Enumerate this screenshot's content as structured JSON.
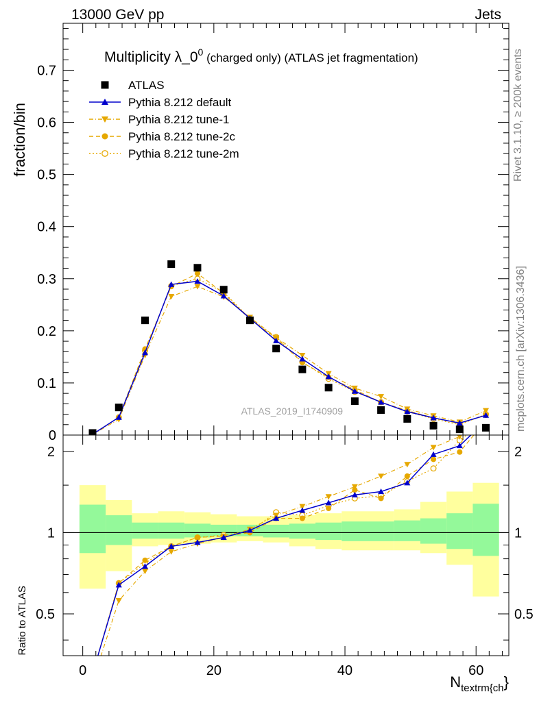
{
  "header": {
    "energy_label": "13000 GeV pp",
    "category_label": "Jets"
  },
  "side": {
    "rivet_label": "Rivet 3.1.10, ≥ 200k events",
    "mcplots_label": "mcplots.cern.ch [arXiv:1306.3436]"
  },
  "chart_data": {
    "type": "scatter",
    "title_main": "Multiplicity λ_0",
    "title_sup": "0",
    "title_rest": " (charged only) (ATLAS jet fragmentation)",
    "ylabel": "fraction/bin",
    "ratio_ylabel": "Ratio to ATLAS",
    "xlabel_main": "N",
    "xlabel_sub": "textrm{ch",
    "xlabel_brace": "}",
    "analysis_label": "ATLAS_2019_I1740909",
    "xlim": [
      -3,
      65
    ],
    "ylim": [
      0,
      0.79
    ],
    "ratio_ylim": [
      0.35,
      2.3
    ],
    "xticks": [
      0,
      20,
      40,
      60
    ],
    "yticks": [
      0,
      0.1,
      0.2,
      0.3,
      0.4,
      0.5,
      0.6,
      0.7
    ],
    "ytick_labels": [
      "0",
      "0.1",
      "0.2",
      "0.3",
      "0.4",
      "0.5",
      "0.6",
      "0.7"
    ],
    "ratio_yticks": [
      0.5,
      1,
      2
    ],
    "ratio_ytick_labels": [
      "0.5",
      "1",
      "2"
    ],
    "x": [
      1.5,
      5.5,
      9.5,
      13.5,
      17.5,
      21.5,
      25.5,
      29.5,
      33.5,
      37.5,
      41.5,
      45.5,
      49.5,
      53.5,
      57.5,
      61.5
    ],
    "bin_edges": [
      -0.5,
      3.5,
      7.5,
      11.5,
      15.5,
      19.5,
      23.5,
      27.5,
      31.5,
      35.5,
      39.5,
      43.5,
      47.5,
      51.5,
      55.5,
      59.5,
      63.5
    ],
    "band_yellow_low": [
      0.62,
      0.72,
      0.89,
      0.9,
      0.91,
      0.92,
      0.93,
      0.92,
      0.89,
      0.87,
      0.86,
      0.86,
      0.86,
      0.84,
      0.76,
      0.58
    ],
    "band_yellow_high": [
      1.5,
      1.32,
      1.18,
      1.2,
      1.19,
      1.17,
      1.15,
      1.15,
      1.16,
      1.18,
      1.2,
      1.2,
      1.22,
      1.3,
      1.42,
      1.53
    ],
    "band_green_low": [
      0.84,
      0.9,
      0.95,
      0.95,
      0.96,
      0.97,
      0.97,
      0.96,
      0.95,
      0.94,
      0.93,
      0.93,
      0.93,
      0.91,
      0.87,
      0.82
    ],
    "band_green_high": [
      1.27,
      1.16,
      1.09,
      1.09,
      1.08,
      1.07,
      1.07,
      1.07,
      1.08,
      1.09,
      1.1,
      1.1,
      1.11,
      1.13,
      1.18,
      1.28
    ],
    "series": [
      {
        "name": "ATLAS",
        "color": "#000000",
        "marker": "square",
        "values": [
          0.004,
          0.053,
          0.22,
          0.328,
          0.321,
          0.279,
          0.22,
          0.166,
          0.126,
          0.091,
          0.065,
          0.048,
          0.031,
          0.018,
          0.011,
          0.014
        ]
      },
      {
        "name": "Pythia 8.212 default",
        "color": "#0000cc",
        "marker": "triangle-up",
        "dash": "",
        "values": [
          0.0015,
          0.034,
          0.158,
          0.289,
          0.295,
          0.267,
          0.224,
          0.181,
          0.146,
          0.112,
          0.084,
          0.063,
          0.045,
          0.033,
          0.023,
          0.038
        ],
        "ratio": [
          0.3,
          0.64,
          0.75,
          0.89,
          0.92,
          0.96,
          1.02,
          1.13,
          1.21,
          1.29,
          1.38,
          1.42,
          1.53,
          1.95,
          2.1,
          2.6
        ]
      },
      {
        "name": "Pythia 8.212 tune-1",
        "color": "#e6a800",
        "marker": "triangle-down",
        "dash": "6,3,1,3",
        "values": [
          0.0013,
          0.03,
          0.153,
          0.266,
          0.285,
          0.265,
          0.226,
          0.187,
          0.153,
          0.118,
          0.09,
          0.074,
          0.05,
          0.037,
          0.025,
          0.047
        ],
        "ratio": [
          0.28,
          0.56,
          0.72,
          0.85,
          0.91,
          0.96,
          1.03,
          1.16,
          1.25,
          1.36,
          1.48,
          1.62,
          1.79,
          2.07,
          2.27,
          2.9
        ]
      },
      {
        "name": "Pythia 8.212 tune-2c",
        "color": "#e6a800",
        "marker": "circle",
        "dash": "6,4",
        "values": [
          0.0015,
          0.034,
          0.165,
          0.285,
          0.31,
          0.272,
          0.222,
          0.186,
          0.139,
          0.111,
          0.087,
          0.063,
          0.047,
          0.033,
          0.022,
          0.038
        ],
        "ratio": [
          0.3,
          0.65,
          0.79,
          0.89,
          0.96,
          0.97,
          1.0,
          1.13,
          1.13,
          1.23,
          1.44,
          1.34,
          1.62,
          1.87,
          1.99,
          2.6
        ]
      },
      {
        "name": "Pythia 8.212 tune-2m",
        "color": "#e6a800",
        "marker": "open-circle",
        "dash": "2,3",
        "values": [
          0.0015,
          0.034,
          0.162,
          0.286,
          0.3,
          0.274,
          0.224,
          0.188,
          0.14,
          0.108,
          0.083,
          0.063,
          0.045,
          0.031,
          0.02,
          0.04
        ],
        "ratio": [
          0.3,
          0.65,
          0.77,
          0.89,
          0.96,
          0.98,
          1.01,
          1.19,
          1.16,
          1.26,
          1.34,
          1.37,
          1.55,
          1.73,
          2.2,
          2.6
        ]
      }
    ]
  }
}
